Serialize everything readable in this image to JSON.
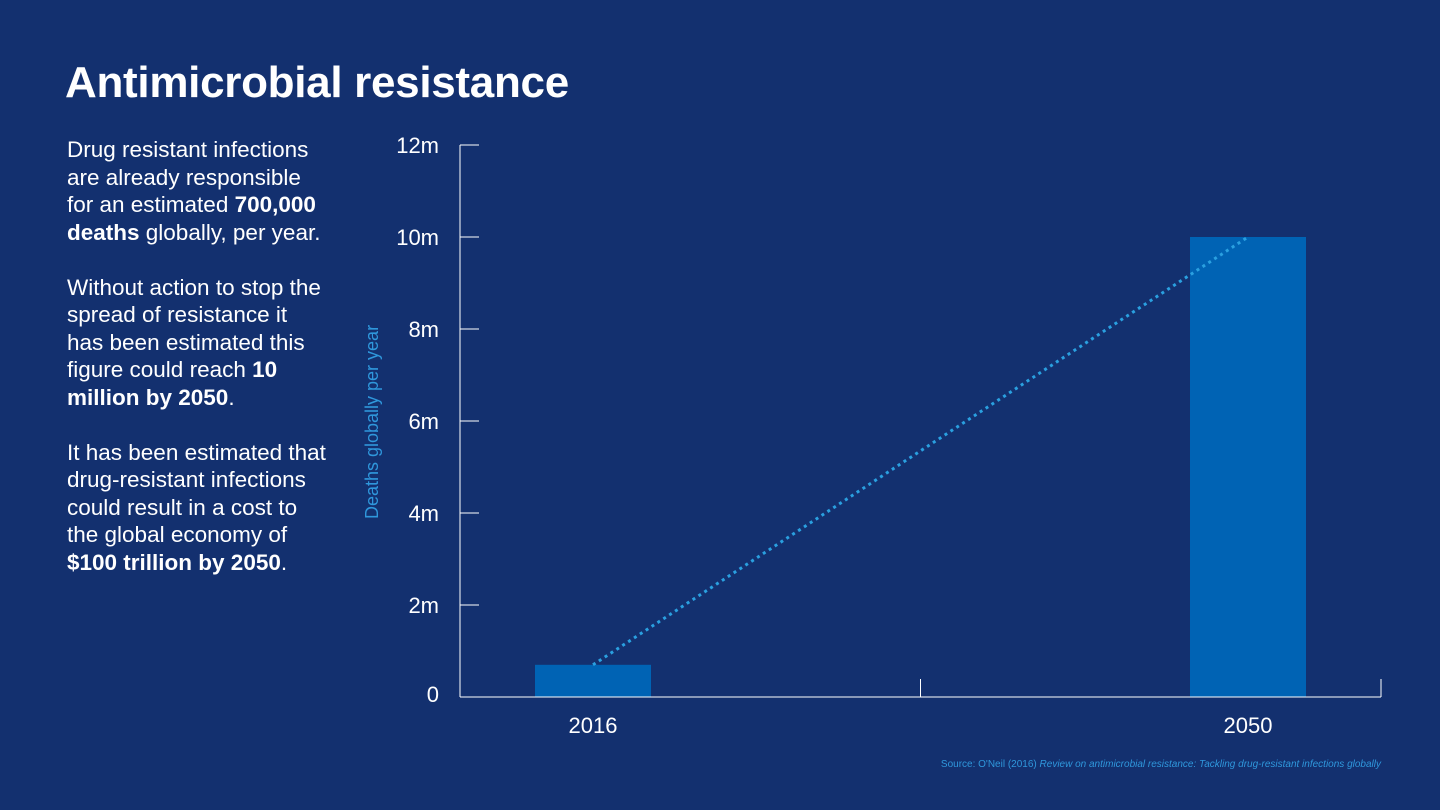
{
  "header": {
    "title": "Antimicrobial resistance"
  },
  "sidebar": {
    "paragraphs": [
      [
        {
          "text": "Drug resistant infections are already responsible for an estimated ",
          "bold": false
        },
        {
          "text": "700,000 deaths",
          "bold": true
        },
        {
          "text": " globally, per year.",
          "bold": false
        }
      ],
      [
        {
          "text": "Without action to stop the spread of resistance it has been estimated this figure could reach ",
          "bold": false
        },
        {
          "text": "10 million by 2050",
          "bold": true
        },
        {
          "text": ".",
          "bold": false
        }
      ],
      [
        {
          "text": "It has been estimated that drug-resistant infections could result in a cost to the global economy of ",
          "bold": false
        },
        {
          "text": "$100 trillion by 2050",
          "bold": true
        },
        {
          "text": ".",
          "bold": false
        }
      ]
    ]
  },
  "chart_data": {
    "type": "bar",
    "title": "",
    "xlabel": "",
    "ylabel": "Deaths globally per year",
    "categories": [
      "2016",
      "2050"
    ],
    "values": [
      700000,
      10000000
    ],
    "ylim": [
      0,
      12000000
    ],
    "yticks": [
      0,
      2000000,
      4000000,
      6000000,
      8000000,
      10000000,
      12000000
    ],
    "ytick_labels": [
      "0",
      "2m",
      "4m",
      "6m",
      "8m",
      "10m",
      "12m"
    ],
    "trend_line": "dotted",
    "grid": false,
    "colors": {
      "bar": "#0063b4",
      "trend": "#2aa0e0",
      "axis": "#ffffff",
      "ylabel": "#2f97dc"
    }
  },
  "source": {
    "prefix": "Source: O'Neil (2016) ",
    "title": "Review on antimicrobial resistance: Tackling drug-resistant infections globally"
  }
}
